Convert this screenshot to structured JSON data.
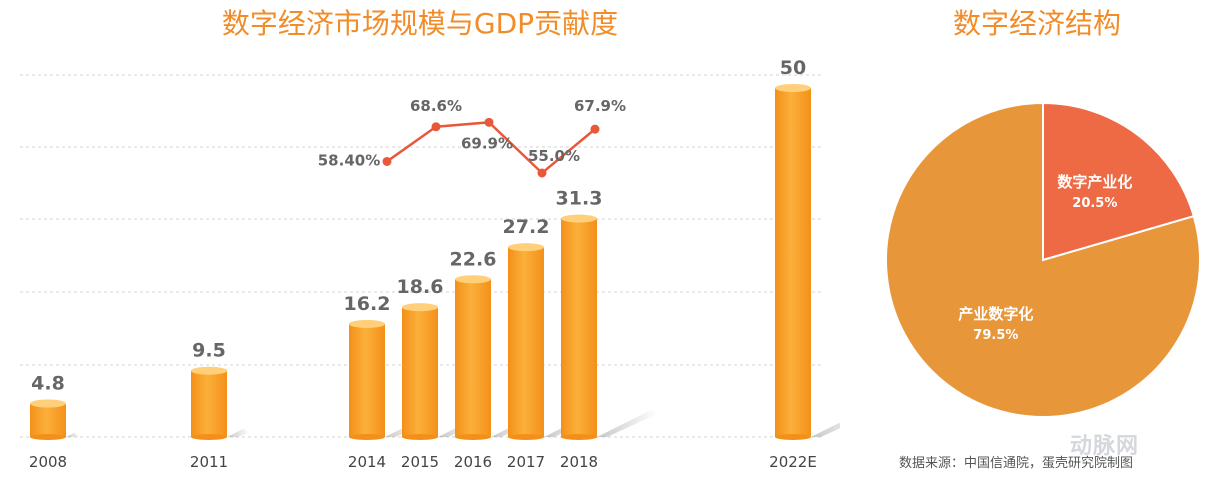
{
  "colors": {
    "title": "#f28c28",
    "bar_light": "#fbb03b",
    "bar_dark": "#f39019",
    "bar_top": "#ffcf7a",
    "line": "#e8593a",
    "label": "#666666",
    "axis_text": "#444444",
    "gridline": "#dcdcdc",
    "pie_large": "#e8963a",
    "pie_small": "#ee6a45"
  },
  "chart_data": [
    {
      "type": "bar",
      "title": "数字经济市场规模与GDP贡献度",
      "categories": [
        "2008",
        "2011",
        "2014",
        "2015",
        "2016",
        "2017",
        "2018",
        "2022E"
      ],
      "values": [
        4.8,
        9.5,
        16.2,
        18.6,
        22.6,
        27.2,
        31.3,
        50
      ],
      "value_labels": [
        "4.8",
        "9.5",
        "16.2",
        "18.6",
        "22.6",
        "27.2",
        "31.3",
        "50"
      ],
      "ylim": [
        0,
        50
      ],
      "grid": true,
      "overlay_line": {
        "categories": [
          "2014",
          "2015",
          "2016",
          "2017",
          "2018"
        ],
        "values": [
          58.4,
          68.6,
          69.9,
          55.0,
          67.9
        ],
        "labels": [
          "58.40%",
          "68.6%",
          "69.9%",
          "55.0%",
          "67.9%"
        ]
      }
    },
    {
      "type": "pie",
      "title": "数字经济结构",
      "slices": [
        {
          "name": "数字产业化",
          "value": 20.5,
          "label": "20.5%"
        },
        {
          "name": "产业数字化",
          "value": 79.5,
          "label": "79.5%"
        }
      ]
    }
  ],
  "footer": {
    "source": "数据来源：中国信通院，蛋壳研究院制图",
    "watermark": "动脉网"
  }
}
